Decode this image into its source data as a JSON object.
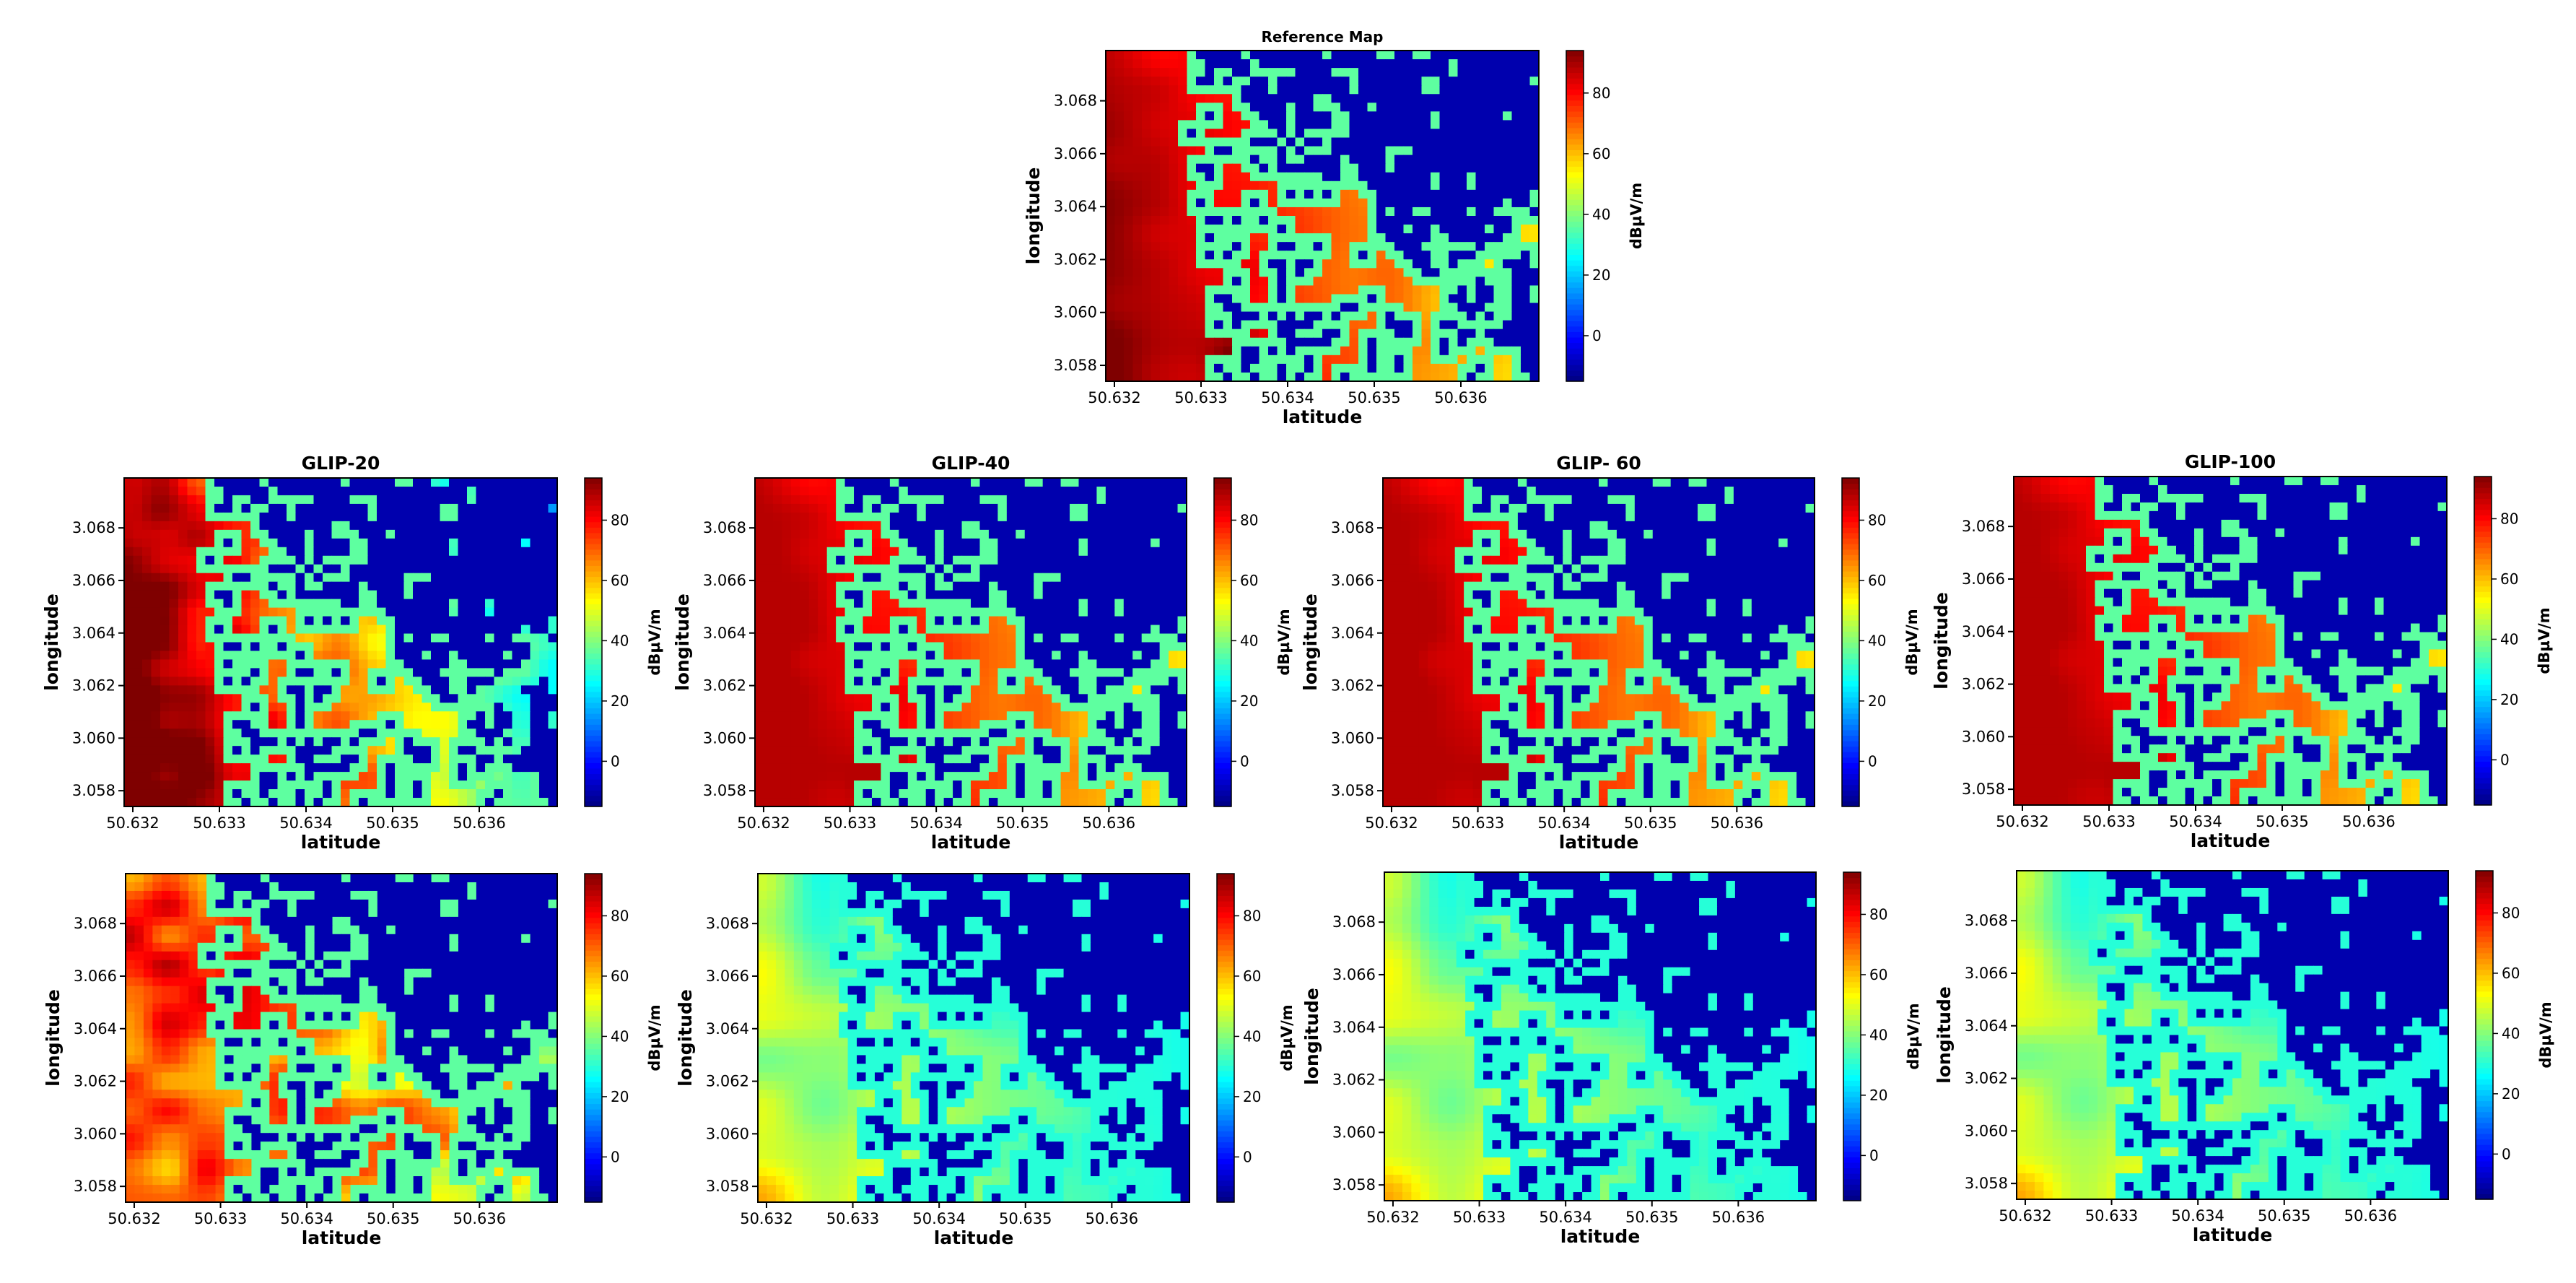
{
  "colormap": {
    "name": "jet",
    "stops": [
      "#00007f",
      "#0000ff",
      "#007fff",
      "#00ffff",
      "#7fff7f",
      "#ffff00",
      "#ff7f00",
      "#ff0000",
      "#7f0000"
    ]
  },
  "colorbar": {
    "label": "dBµV/m",
    "range": [
      -15,
      94
    ],
    "ticks": [
      "0",
      "20",
      "40",
      "60",
      "80"
    ],
    "tick_values": [
      0,
      20,
      40,
      60,
      80
    ]
  },
  "axes": {
    "xlabel": "latitude",
    "ylabel": "longitude",
    "x_ticks": [
      "50.632",
      "50.633",
      "50.634",
      "50.635",
      "50.636"
    ],
    "x_tick_values": [
      50.632,
      50.633,
      50.634,
      50.635,
      50.636
    ],
    "xlim": [
      50.6319,
      50.6369
    ],
    "y_ticks": [
      "3.058",
      "3.060",
      "3.062",
      "3.064",
      "3.066",
      "3.068"
    ],
    "y_tick_values": [
      3.058,
      3.06,
      3.062,
      3.064,
      3.066,
      3.068
    ],
    "ylim": [
      3.0574,
      3.0699
    ]
  },
  "chart_data": [
    {
      "type": "heatmap",
      "title": "Reference Map",
      "map_style": "reference",
      "building_value": -10
    },
    {
      "type": "heatmap",
      "title": "GLIP-20",
      "map_style": "glip20",
      "building_value": -10
    },
    {
      "type": "heatmap",
      "title": "GLIP-40",
      "map_style": "glip",
      "building_value": -10
    },
    {
      "type": "heatmap",
      "title": "GLIP- 60",
      "map_style": "glip",
      "building_value": -10
    },
    {
      "type": "heatmap",
      "title": "GLIP-100",
      "map_style": "glip",
      "building_value": -10
    },
    {
      "type": "heatmap",
      "title": "",
      "map_style": "error20",
      "building_value": -10
    },
    {
      "type": "heatmap",
      "title": "",
      "map_style": "error",
      "building_value": -10
    },
    {
      "type": "heatmap",
      "title": "",
      "map_style": "error",
      "building_value": -10
    },
    {
      "type": "heatmap",
      "title": "",
      "map_style": "error",
      "building_value": -10
    }
  ]
}
